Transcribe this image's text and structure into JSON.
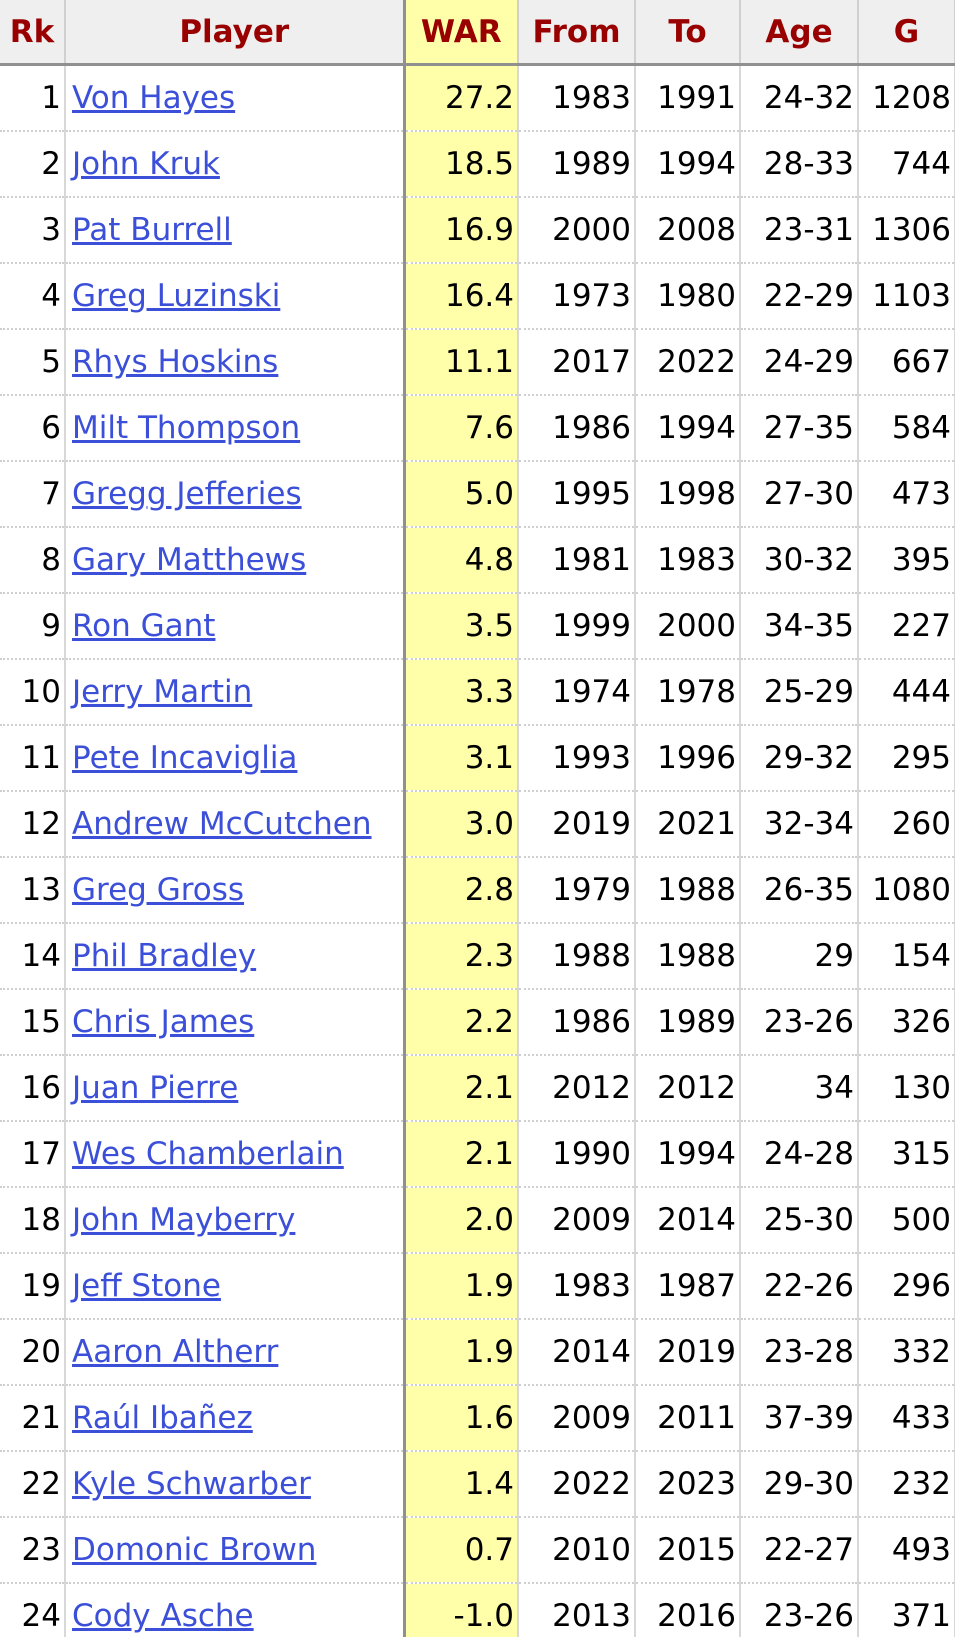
{
  "table": {
    "headers": [
      "Rk",
      "Player",
      "WAR",
      "From",
      "To",
      "Age",
      "G"
    ],
    "rows": [
      [
        "1",
        "Von Hayes",
        "27.2",
        "1983",
        "1991",
        "24-32",
        "1208"
      ],
      [
        "2",
        "John Kruk",
        "18.5",
        "1989",
        "1994",
        "28-33",
        "744"
      ],
      [
        "3",
        "Pat Burrell",
        "16.9",
        "2000",
        "2008",
        "23-31",
        "1306"
      ],
      [
        "4",
        "Greg Luzinski",
        "16.4",
        "1973",
        "1980",
        "22-29",
        "1103"
      ],
      [
        "5",
        "Rhys Hoskins",
        "11.1",
        "2017",
        "2022",
        "24-29",
        "667"
      ],
      [
        "6",
        "Milt Thompson",
        "7.6",
        "1986",
        "1994",
        "27-35",
        "584"
      ],
      [
        "7",
        "Gregg Jefferies",
        "5.0",
        "1995",
        "1998",
        "27-30",
        "473"
      ],
      [
        "8",
        "Gary Matthews",
        "4.8",
        "1981",
        "1983",
        "30-32",
        "395"
      ],
      [
        "9",
        "Ron Gant",
        "3.5",
        "1999",
        "2000",
        "34-35",
        "227"
      ],
      [
        "10",
        "Jerry Martin",
        "3.3",
        "1974",
        "1978",
        "25-29",
        "444"
      ],
      [
        "11",
        "Pete Incaviglia",
        "3.1",
        "1993",
        "1996",
        "29-32",
        "295"
      ],
      [
        "12",
        "Andrew McCutchen",
        "3.0",
        "2019",
        "2021",
        "32-34",
        "260"
      ],
      [
        "13",
        "Greg Gross",
        "2.8",
        "1979",
        "1988",
        "26-35",
        "1080"
      ],
      [
        "14",
        "Phil Bradley",
        "2.3",
        "1988",
        "1988",
        "29",
        "154"
      ],
      [
        "15",
        "Chris James",
        "2.2",
        "1986",
        "1989",
        "23-26",
        "326"
      ],
      [
        "16",
        "Juan Pierre",
        "2.1",
        "2012",
        "2012",
        "34",
        "130"
      ],
      [
        "17",
        "Wes Chamberlain",
        "2.1",
        "1990",
        "1994",
        "24-28",
        "315"
      ],
      [
        "18",
        "John Mayberry",
        "2.0",
        "2009",
        "2014",
        "25-30",
        "500"
      ],
      [
        "19",
        "Jeff Stone",
        "1.9",
        "1983",
        "1987",
        "22-26",
        "296"
      ],
      [
        "20",
        "Aaron Altherr",
        "1.9",
        "2014",
        "2019",
        "23-28",
        "332"
      ],
      [
        "21",
        "Raúl Ibañez",
        "1.6",
        "2009",
        "2011",
        "37-39",
        "433"
      ],
      [
        "22",
        "Kyle Schwarber",
        "1.4",
        "2022",
        "2023",
        "29-30",
        "232"
      ],
      [
        "23",
        "Domonic Brown",
        "0.7",
        "2010",
        "2015",
        "22-27",
        "493"
      ],
      [
        "24",
        "Cody Asche",
        "-1.0",
        "2013",
        "2016",
        "23-26",
        "371"
      ]
    ]
  }
}
